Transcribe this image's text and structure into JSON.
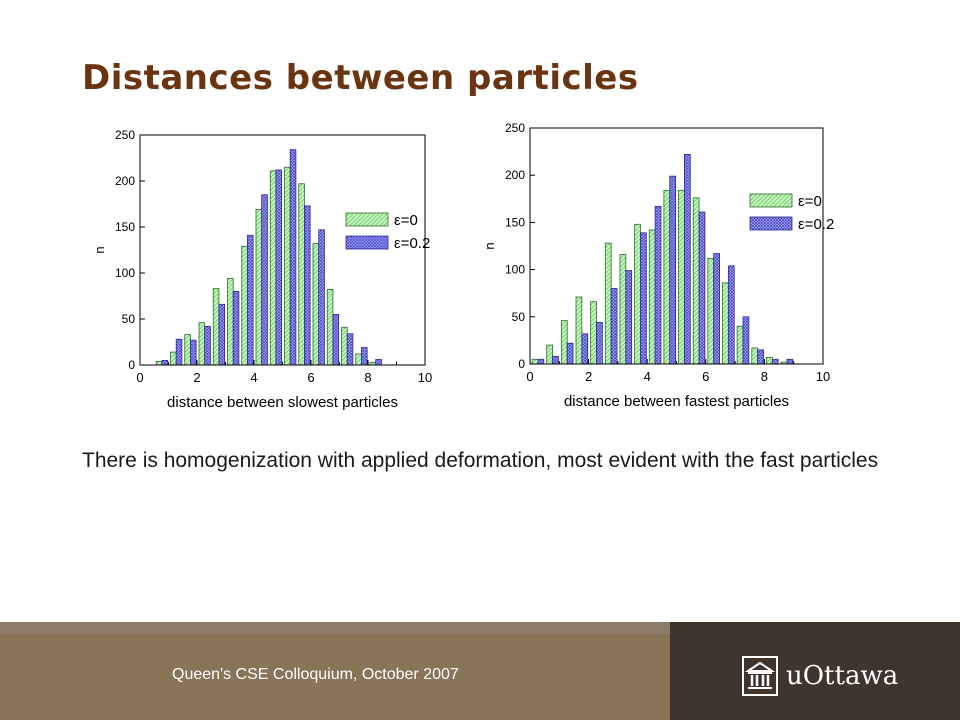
{
  "slide": {
    "title": "Distances between particles",
    "body": "There is homogenization with applied deformation, most evident with the fast particles",
    "footer_text": "Queen's CSE Colloquium, October 2007",
    "logo_text": "uOttawa",
    "logo_icon": "university-building-icon",
    "colors": {
      "title": "#6b3410",
      "green_bar": "#a8f0a0",
      "blue_bar": "#9a9cf0",
      "footer": "#887558",
      "footer_dark": "#3f352c"
    }
  },
  "chart_data": [
    {
      "type": "bar",
      "xlabel": "distance between slowest particles",
      "ylabel": "n",
      "xlim": [
        0,
        10
      ],
      "ylim": [
        0,
        250
      ],
      "xticks": [
        0,
        2,
        4,
        6,
        8,
        10
      ],
      "yticks": [
        0,
        50,
        100,
        150,
        200,
        250
      ],
      "legend_position": "right",
      "series": [
        {
          "name": "ε=0",
          "color": "green",
          "x": [
            0.67,
            1.17,
            1.67,
            2.17,
            2.67,
            3.17,
            3.67,
            4.17,
            4.67,
            5.17,
            5.67,
            6.17,
            6.67,
            7.17,
            7.67,
            8.17
          ],
          "values": [
            4,
            14,
            33,
            46,
            83,
            94,
            129,
            169,
            211,
            215,
            197,
            132,
            82,
            41,
            12,
            3
          ]
        },
        {
          "name": "ε=0.2",
          "color": "blue",
          "x": [
            0.87,
            1.37,
            1.87,
            2.37,
            2.87,
            3.37,
            3.87,
            4.37,
            4.87,
            5.37,
            5.87,
            6.37,
            6.87,
            7.37,
            7.87,
            8.37
          ],
          "values": [
            5,
            28,
            27,
            42,
            66,
            80,
            141,
            185,
            212,
            234,
            173,
            147,
            55,
            34,
            19,
            6
          ]
        }
      ]
    },
    {
      "type": "bar",
      "xlabel": "distance between fastest particles",
      "ylabel": "n",
      "xlim": [
        0,
        10
      ],
      "ylim": [
        0,
        250
      ],
      "xticks": [
        0,
        2,
        4,
        6,
        8,
        10
      ],
      "yticks": [
        0,
        50,
        100,
        150,
        200,
        250
      ],
      "legend_position": "right",
      "series": [
        {
          "name": "ε=0",
          "color": "green",
          "x": [
            0.17,
            0.67,
            1.17,
            1.67,
            2.17,
            2.67,
            3.17,
            3.67,
            4.17,
            4.67,
            5.17,
            5.67,
            6.17,
            6.67,
            7.17,
            7.67,
            8.17,
            8.67
          ],
          "values": [
            5,
            20,
            46,
            71,
            66,
            128,
            116,
            148,
            142,
            184,
            184,
            176,
            112,
            86,
            40,
            17,
            7,
            2
          ]
        },
        {
          "name": "ε=0.2",
          "color": "blue",
          "x": [
            0.37,
            0.87,
            1.37,
            1.87,
            2.37,
            2.87,
            3.37,
            3.87,
            4.37,
            4.87,
            5.37,
            5.87,
            6.37,
            6.87,
            7.37,
            7.87,
            8.37,
            8.87
          ],
          "values": [
            5,
            8,
            22,
            32,
            44,
            80,
            99,
            139,
            167,
            199,
            222,
            161,
            117,
            104,
            50,
            15,
            5,
            5
          ]
        }
      ]
    }
  ]
}
